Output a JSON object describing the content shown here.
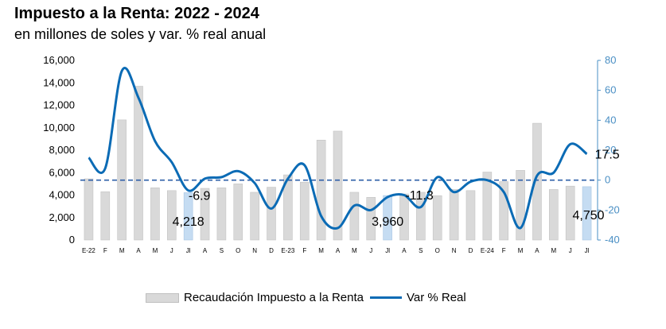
{
  "title": "Impuesto a la Renta: 2022 - 2024",
  "subtitle": "en millones de soles y var. % real anual",
  "chart_data": {
    "type": "bar+line",
    "categories": [
      "E-22",
      "F",
      "M",
      "A",
      "M",
      "J",
      "Jl",
      "A",
      "S",
      "O",
      "N",
      "D",
      "E-23",
      "F",
      "M",
      "A",
      "M",
      "J",
      "Jl",
      "A",
      "S",
      "O",
      "N",
      "D",
      "E-24",
      "F",
      "M",
      "A",
      "M",
      "J",
      "Jl"
    ],
    "series": [
      {
        "name": "Recaudación Impuesto a la Renta",
        "type": "bar",
        "axis": "left",
        "values": [
          5450,
          4300,
          10700,
          13700,
          4650,
          4400,
          4218,
          4600,
          4650,
          5000,
          4250,
          4700,
          5800,
          5150,
          8900,
          9700,
          4250,
          3800,
          3960,
          4100,
          4250,
          3950,
          4500,
          4400,
          6050,
          5200,
          6200,
          10400,
          4500,
          4800,
          4750
        ],
        "highlight_indices": [
          6,
          18,
          30
        ],
        "color": "#d9d9d9",
        "highlight_color": "#c5dcf2"
      },
      {
        "name": "Var % Real",
        "type": "line",
        "axis": "right",
        "values": [
          15,
          8,
          73,
          55,
          26,
          12,
          -6.9,
          1,
          2,
          6,
          -2,
          -19,
          1,
          10,
          -24,
          -32,
          -17,
          -20,
          -11.3,
          -10,
          -18,
          2,
          -8,
          -1,
          0,
          -8,
          -32,
          3,
          5,
          24,
          17.5
        ],
        "color": "#0b6bb5"
      }
    ],
    "y_left": {
      "min": 0,
      "max": 16000,
      "ticks": [
        "0",
        "2,000",
        "4,000",
        "6,000",
        "8,000",
        "10,000",
        "12,000",
        "14,000",
        "16,000"
      ]
    },
    "y_right": {
      "min": -40,
      "max": 80,
      "ticks": [
        "-40",
        "-20",
        "0",
        "20",
        "40",
        "60",
        "80"
      ]
    },
    "reference_line": {
      "axis": "right",
      "value": 0,
      "style": "dashed",
      "color": "#2e5fa8"
    },
    "data_labels": [
      {
        "text": "4,218",
        "index": 6,
        "series": "bar"
      },
      {
        "text": "-6.9",
        "index": 6,
        "series": "line"
      },
      {
        "text": "3,960",
        "index": 18,
        "series": "bar"
      },
      {
        "text": "-11.3",
        "index": 18,
        "series": "line"
      },
      {
        "text": "4,750",
        "index": 30,
        "series": "bar"
      },
      {
        "text": "17.5",
        "index": 30,
        "series": "line"
      }
    ],
    "legend": {
      "placement": "bottom",
      "bar_label": "Recaudación Impuesto a la Renta",
      "line_label": "Var % Real"
    }
  }
}
